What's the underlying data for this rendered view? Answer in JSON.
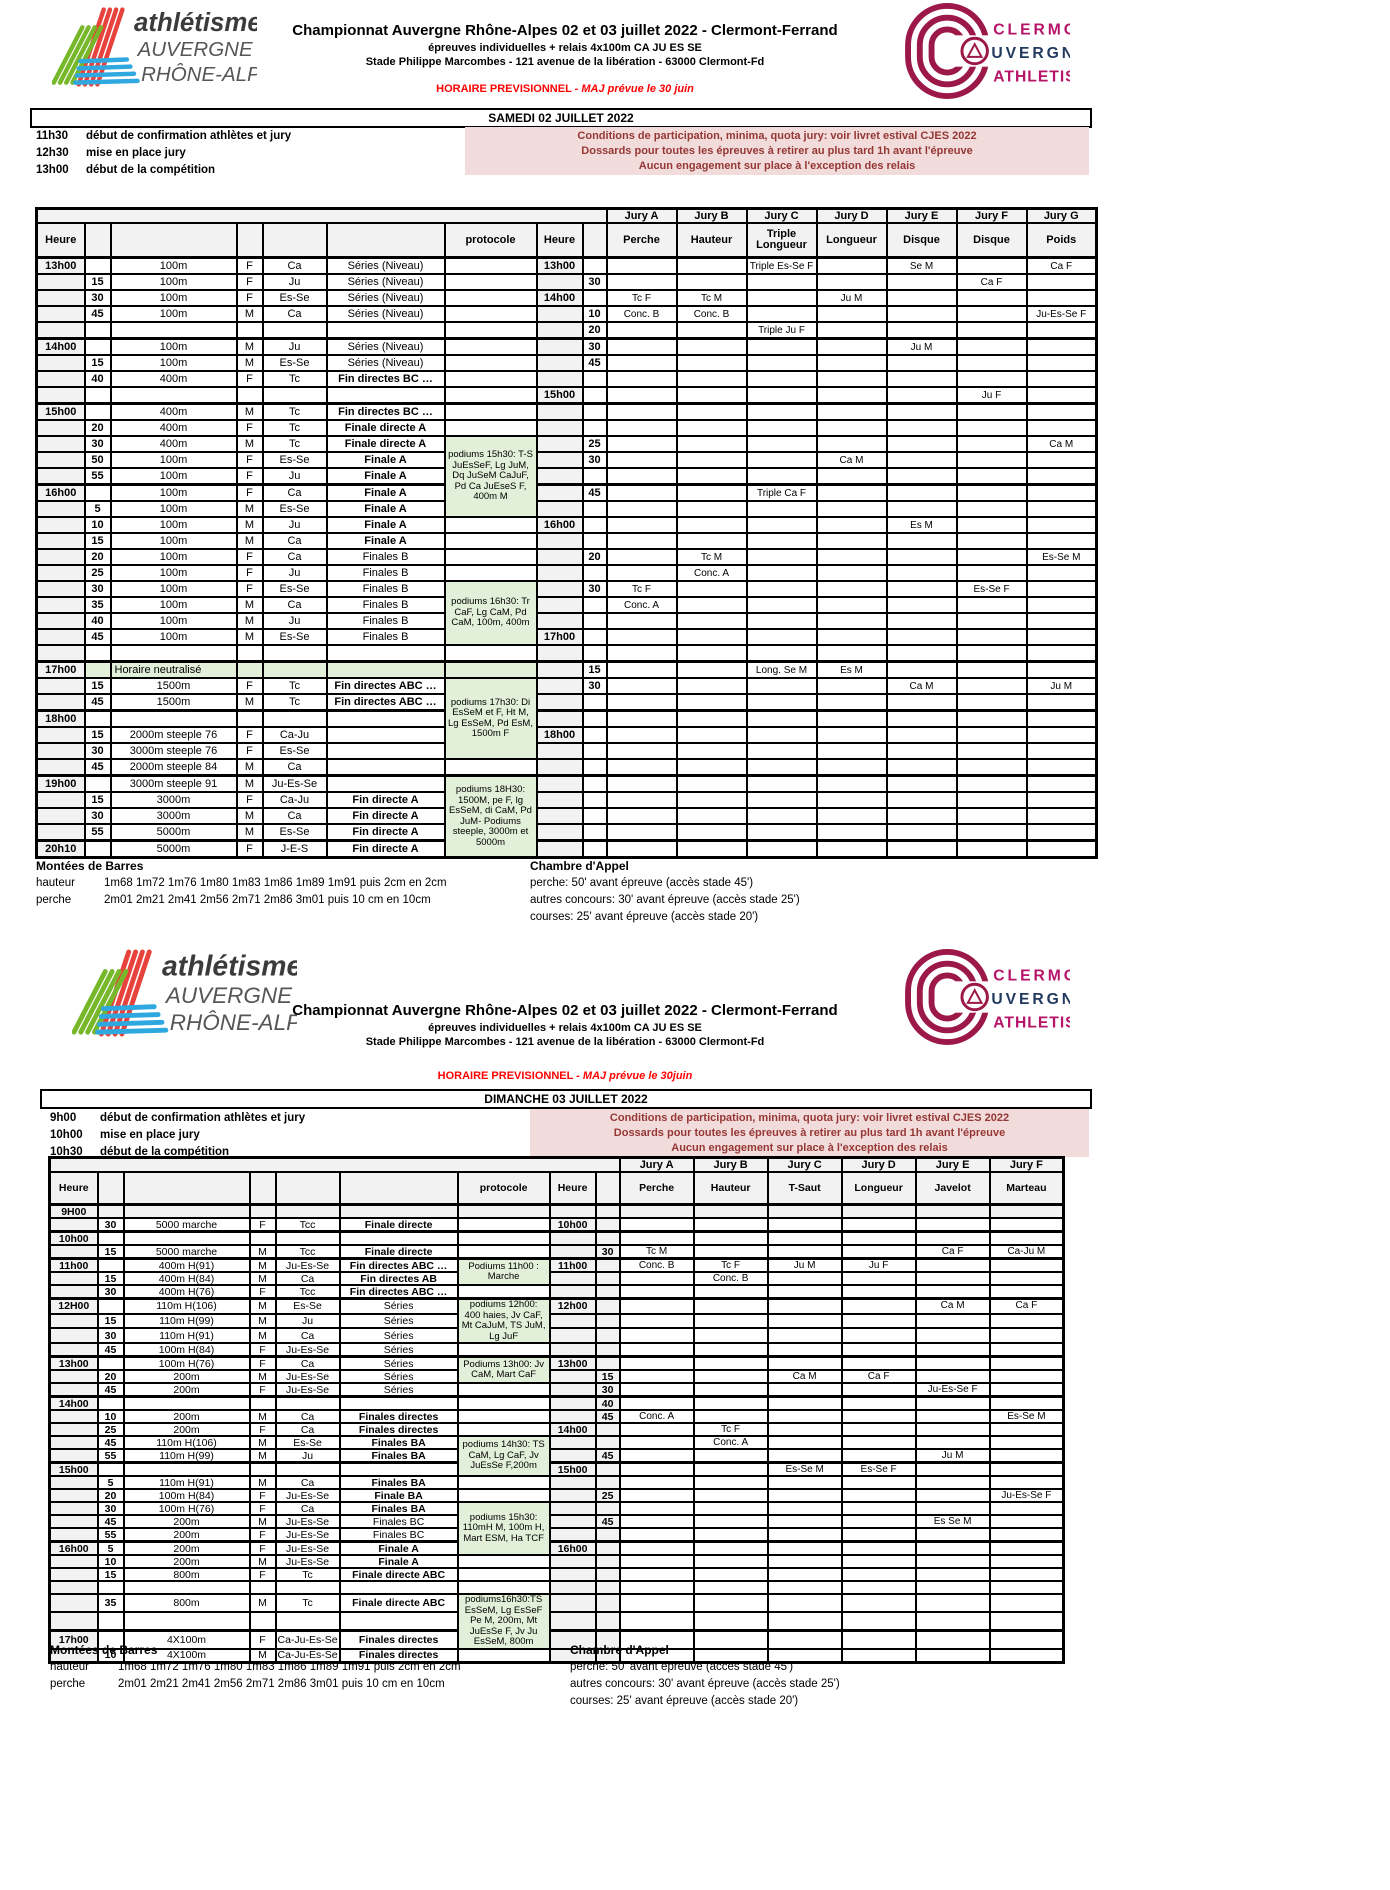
{
  "header": {
    "title": "Championnat Auvergne Rhône-Alpes 02 et 03 juillet 2022 - Clermont-Ferrand",
    "subtitle1": "épreuves individuelles + relais 4x100m CA JU ES SE",
    "subtitle2": "Stade Philippe Marcombes - 121 avenue de la libération - 63000 Clermont-Fd",
    "schedule_prefix": "HORAIRE PREVISIONNEL - ",
    "maj_note_sat": "MAJ prévue le 30 juin",
    "maj_note_sun": "MAJ prévue le 30juin"
  },
  "logo_left": {
    "line1": "athlétisme",
    "line2": "AUVERGNE",
    "line3": "RHÔNE-ALPES"
  },
  "logo_right": {
    "line1": "CLERMONT",
    "line2": "UVERGNE",
    "line3": "ATHLETISME"
  },
  "conditions": [
    "Conditions de participation, minima, quota jury: voir livret estival CJES 2022",
    "Dossards pour toutes les épreuves à retirer au plus tard 1h avant l'épreuve",
    "Aucun engagement sur place à l'exception des relais"
  ],
  "colors": {
    "green_box": "#e2efd9",
    "pink_box": "#f2dcdb",
    "red_note": "#ff0000",
    "maroon_text": "#953735"
  },
  "footer": {
    "bars_title": "Montées de Barres",
    "bars_rows": [
      [
        "hauteur",
        "1m68 1m72 1m76 1m80 1m83 1m86 1m89 1m91 puis 2cm en 2cm"
      ],
      [
        "perche",
        "2m01 2m21 2m41 2m56 2m71 2m86 3m01 puis 10 cm en 10cm"
      ]
    ],
    "call_title": "Chambre d'Appel",
    "call_lines": [
      "perche: 50' avant épreuve (accès stade 45')",
      "autres concours: 30' avant épreuve (accès stade 25')",
      "courses: 25' avant épreuve (accès stade 20')"
    ]
  },
  "saturday": {
    "day_title": "SAMEDI 02 JUILLET 2022",
    "notes": [
      [
        "11h30",
        "début de confirmation athlètes et jury"
      ],
      [
        "12h30",
        "mise en place jury"
      ],
      [
        "13h00",
        "début de la compétition"
      ]
    ],
    "headers": {
      "heure": "Heure",
      "protocole": "protocole",
      "heure2": "Heure"
    },
    "jury_labels": [
      "Jury A",
      "Jury B",
      "Jury C",
      "Jury D",
      "Jury E",
      "Jury F",
      "Jury G"
    ],
    "jury_disciplines": [
      "Perche",
      "Hauteur",
      "Triple Longueur",
      "Longueur",
      "Disque",
      "Disque",
      "Poids"
    ],
    "protocol_boxes": [
      {
        "start": 11,
        "span": 5,
        "text": "podiums 15h30:  T-S JuEsSeF, Lg JuM, Dq JuSeM CaJuF, Pd Ca JuEseS F, 400m M"
      },
      {
        "start": 20,
        "span": 4,
        "text": "podiums 16h30: Tr CaF, Lg CaM, Pd CaM, 100m, 400m"
      },
      {
        "start": 26,
        "span": 5,
        "text": "podiums 17h30: Di EsSeM et F, Ht M, Lg  EsSeM, Pd EsM, 1500m F"
      },
      {
        "start": 32,
        "span": 5,
        "text": "podiums 18H30: 1500M, pe F, lg EsSeM, di CaM, Pd JuM- Podiums steeple, 3000m et 5000m"
      }
    ],
    "rows": [
      {
        "th": 1,
        "h": "13h00",
        "ev": "100m",
        "sx": "F",
        "cat": "Ca",
        "rd": "Séries (Niveau)",
        "h2": "13h00",
        "j": {
          "C": "Triple Es-Se F",
          "E": "Se M",
          "G": "Ca F"
        }
      },
      {
        "m": "15",
        "ev": "100m",
        "sx": "F",
        "cat": "Ju",
        "rd": "Séries (Niveau)",
        "m2": "30",
        "j": {
          "F": "Ca F"
        }
      },
      {
        "m": "30",
        "ev": "100m",
        "sx": "F",
        "cat": "Es-Se",
        "rd": "Séries (Niveau)",
        "h2": "14h00",
        "j": {
          "A": "Tc F",
          "B": "Tc M",
          "D": "Ju M"
        }
      },
      {
        "m": "45",
        "ev": "100m",
        "sx": "M",
        "cat": "Ca",
        "rd": "Séries (Niveau)",
        "m2": "10",
        "j": {
          "A": "Conc. B",
          "B": "Conc. B",
          "G": "Ju-Es-Se F"
        }
      },
      {
        "m2": "20",
        "j": {
          "C": "Triple Ju F"
        }
      },
      {
        "th": 1,
        "h": "14h00",
        "ev": "100m",
        "sx": "M",
        "cat": "Ju",
        "rd": "Séries (Niveau)",
        "m2": "30",
        "j": {
          "E": "Ju M"
        }
      },
      {
        "m": "15",
        "ev": "100m",
        "sx": "M",
        "cat": "Es-Se",
        "rd": "Séries (Niveau)",
        "m2": "45"
      },
      {
        "m": "40",
        "ev": "400m",
        "sx": "F",
        "cat": "Tc",
        "rd": "Fin directes BC …",
        "b": 1
      },
      {
        "h2": "15h00",
        "j": {
          "F": "Ju F"
        }
      },
      {
        "th": 1,
        "h": "15h00",
        "ev": "400m",
        "sx": "M",
        "cat": "Tc",
        "rd": "Fin directes BC …",
        "b": 1
      },
      {
        "m": "20",
        "ev": "400m",
        "sx": "F",
        "cat": "Tc",
        "rd": "Finale directe A",
        "b": 1
      },
      {
        "m": "30",
        "ev": "400m",
        "sx": "M",
        "cat": "Tc",
        "rd": "Finale directe A",
        "b": 1,
        "m2": "25",
        "j": {
          "G": "Ca M"
        }
      },
      {
        "m": "50",
        "ev": "100m",
        "sx": "F",
        "cat": "Es-Se",
        "rd": "Finale A",
        "b": 1,
        "m2": "30",
        "j": {
          "D": "Ca M"
        }
      },
      {
        "m": "55",
        "ev": "100m",
        "sx": "F",
        "cat": "Ju",
        "rd": "Finale A",
        "b": 1
      },
      {
        "th": 1,
        "h": "16h00",
        "ev": "100m",
        "sx": "F",
        "cat": "Ca",
        "rd": "Finale A",
        "b": 1,
        "m2": "45",
        "j": {
          "C": "Triple Ca F"
        }
      },
      {
        "m": "5",
        "ev": "100m",
        "sx": "M",
        "cat": "Es-Se",
        "rd": "Finale A",
        "b": 1
      },
      {
        "m": "10",
        "ev": "100m",
        "sx": "M",
        "cat": "Ju",
        "rd": "Finale A",
        "b": 1,
        "h2": "16h00",
        "j": {
          "E": "Es M"
        }
      },
      {
        "m": "15",
        "ev": "100m",
        "sx": "M",
        "cat": "Ca",
        "rd": "Finale A",
        "b": 1
      },
      {
        "m": "20",
        "ev": "100m",
        "sx": "F",
        "cat": "Ca",
        "rd": "Finales B",
        "m2": "20",
        "j": {
          "B": "Tc M",
          "G": "Es-Se M"
        }
      },
      {
        "m": "25",
        "ev": "100m",
        "sx": "F",
        "cat": "Ju",
        "rd": "Finales B",
        "j": {
          "B": "Conc. A"
        }
      },
      {
        "m": "30",
        "ev": "100m",
        "sx": "F",
        "cat": "Es-Se",
        "rd": "Finales B",
        "m2": "30",
        "j": {
          "A": "Tc F",
          "F": "Es-Se F"
        }
      },
      {
        "m": "35",
        "ev": "100m",
        "sx": "M",
        "cat": "Ca",
        "rd": "Finales B",
        "j": {
          "A": "Conc. A"
        }
      },
      {
        "m": "40",
        "ev": "100m",
        "sx": "M",
        "cat": "Ju",
        "rd": "Finales B"
      },
      {
        "m": "45",
        "ev": "100m",
        "sx": "M",
        "cat": "Es-Se",
        "rd": "Finales B",
        "h2": "17h00"
      },
      {},
      {
        "th": 1,
        "h": "17h00",
        "neutral": 1,
        "ev": "Horaire neutralisé",
        "m2": "15",
        "j": {
          "C": "Long. Se M",
          "D": "Es M"
        }
      },
      {
        "m": "15",
        "ev": "1500m",
        "sx": "F",
        "cat": "Tc",
        "rd": "Fin directes ABC …",
        "b": 1,
        "m2": "30",
        "j": {
          "E": "Ca M",
          "G": "Ju M"
        }
      },
      {
        "m": "45",
        "ev": "1500m",
        "sx": "M",
        "cat": "Tc",
        "rd": "Fin directes ABC …",
        "b": 1
      },
      {
        "th": 1,
        "h": "18h00"
      },
      {
        "m": "15",
        "ev": "2000m steeple 76",
        "sx": "F",
        "cat": "Ca-Ju",
        "h2": "18h00"
      },
      {
        "m": "30",
        "ev": "3000m steeple 76",
        "sx": "F",
        "cat": "Es-Se"
      },
      {
        "m": "45",
        "ev": "2000m steeple 84",
        "sx": "M",
        "cat": "Ca"
      },
      {
        "th": 1,
        "h": "19h00",
        "ev": "3000m steeple 91",
        "sx": "M",
        "cat": "Ju-Es-Se"
      },
      {
        "m": "15",
        "ev": "3000m",
        "sx": "F",
        "cat": "Ca-Ju",
        "rd": "Fin directe A",
        "b": 1
      },
      {
        "m": "30",
        "ev": "3000m",
        "sx": "M",
        "cat": "Ca",
        "rd": "Fin directe A",
        "b": 1
      },
      {
        "m": "55",
        "ev": "5000m",
        "sx": "M",
        "cat": "Es-Se",
        "rd": "Fin directe A",
        "b": 1
      },
      {
        "th": 1,
        "h": "20h10",
        "ev": "5000m",
        "sx": "F",
        "cat": "J-E-S",
        "rd": "Fin directe A",
        "b": 1
      }
    ]
  },
  "sunday": {
    "day_title": "DIMANCHE 03 JUILLET 2022",
    "notes": [
      [
        "9h00",
        "début de confirmation athlètes et jury"
      ],
      [
        "10h00",
        "mise en place jury"
      ],
      [
        "10h30",
        "début de la compétition"
      ]
    ],
    "headers": {
      "heure": "Heure",
      "protocole": "protocole",
      "heure2": "Heure"
    },
    "jury_labels": [
      "Jury A",
      "Jury B",
      "Jury C",
      "Jury D",
      "Jury E",
      "Jury F"
    ],
    "jury_disciplines": [
      "Perche",
      "Hauteur",
      "T-Saut",
      "Longueur",
      "Javelot",
      "Marteau"
    ],
    "protocol_boxes": [
      {
        "start": 4,
        "span": 2,
        "text": "Podiums 11h00 : Marche"
      },
      {
        "start": 7,
        "span": 3,
        "text": "podiums 12h00:  400 haies, Jv CaF, Mt CaJuM, TS JuM, Lg JuF"
      },
      {
        "start": 11,
        "span": 2,
        "text": "Podiums 13h00: Jv CaM, Mart CaF"
      },
      {
        "start": 17,
        "span": 3,
        "text": "podiums 14h30:  TS CaM, Lg CaF, Jv JuEsSe F,200m"
      },
      {
        "start": 22,
        "span": 4,
        "text": "podiums 15h30: 110mH M, 100m H, Mart ESM, Ha TCF"
      },
      {
        "start": 29,
        "span": 3,
        "text": "podiums16h30:TS EsSeM, Lg EsSeF Pe M, 200m, Mt JuEsSe F, Jv Ju EsSeM, 800m"
      }
    ],
    "rows": [
      {
        "th": 1,
        "h": "9H00",
        "gray": 1
      },
      {
        "m": "30",
        "ev": "5000 marche",
        "sx": "F",
        "cat": "Tcc",
        "rd": "Finale directe",
        "b": 1,
        "h2": "10h00"
      },
      {
        "th": 1,
        "h": "10h00"
      },
      {
        "m": "15",
        "ev": "5000 marche",
        "sx": "M",
        "cat": "Tcc",
        "rd": "Finale directe",
        "b": 1,
        "m2": "30",
        "j": {
          "A": "Tc M",
          "E": "Ca F",
          "F": "Ca-Ju M"
        }
      },
      {
        "th": 1,
        "h": "11h00",
        "ev": "400m H(91)",
        "sx": "M",
        "cat": "Ju-Es-Se",
        "rd": "Fin directes ABC …",
        "b": 1,
        "h2": "11h00",
        "j": {
          "A": "Conc. B",
          "B": "Tc F",
          "C": "Ju M",
          "D": "Ju F"
        }
      },
      {
        "m": "15",
        "ev": "400m H(84)",
        "sx": "M",
        "cat": "Ca",
        "rd": "Fin directes AB",
        "b": 1,
        "j": {
          "B": "Conc. B"
        }
      },
      {
        "m": "30",
        "ev": "400m H(76)",
        "sx": "F",
        "cat": "Tcc",
        "rd": "Fin directes ABC …",
        "b": 1
      },
      {
        "th": 1,
        "h": "12H00",
        "ev": "110m H(106)",
        "sx": "M",
        "cat": "Es-Se",
        "rd": "Séries",
        "h2": "12h00",
        "j": {
          "E": "Ca M",
          "F": "Ca F"
        }
      },
      {
        "m": "15",
        "ev": "110m H(99)",
        "sx": "M",
        "cat": "Ju",
        "rd": "Séries"
      },
      {
        "m": "30",
        "ev": "110m H(91)",
        "sx": "M",
        "cat": "Ca",
        "rd": "Séries"
      },
      {
        "m": "45",
        "ev": "100m H(84)",
        "sx": "F",
        "cat": "Ju-Es-Se",
        "rd": "Séries"
      },
      {
        "th": 1,
        "h": "13h00",
        "ev": "100m H(76)",
        "sx": "F",
        "cat": "Ca",
        "rd": "Séries",
        "h2": "13h00"
      },
      {
        "m": "20",
        "ev": "200m",
        "sx": "M",
        "cat": "Ju-Es-Se",
        "rd": "Séries",
        "m2": "15",
        "j": {
          "C": "Ca M",
          "D": "Ca F"
        }
      },
      {
        "m": "45",
        "ev": "200m",
        "sx": "F",
        "cat": "Ju-Es-Se",
        "rd": "Séries",
        "m2": "30",
        "j": {
          "E": "Ju-Es-Se F"
        }
      },
      {
        "th": 1,
        "h": "14h00",
        "m2": "40"
      },
      {
        "m": "10",
        "ev": "200m",
        "sx": "M",
        "cat": "Ca",
        "rd": "Finales directes",
        "b": 1,
        "m2": "45",
        "j": {
          "A": "Conc. A",
          "F": "Es-Se M"
        }
      },
      {
        "m": "25",
        "ev": "200m",
        "sx": "F",
        "cat": "Ca",
        "rd": "Finales directes",
        "b": 1,
        "h2": "14h00",
        "j": {
          "B": "Tc F"
        }
      },
      {
        "m": "45",
        "ev": "110m H(106)",
        "sx": "M",
        "cat": "Es-Se",
        "rd": "Finales BA",
        "b": 1,
        "j": {
          "B": "Conc. A"
        }
      },
      {
        "m": "55",
        "ev": "110m H(99)",
        "sx": "M",
        "cat": "Ju",
        "rd": "Finales BA",
        "b": 1,
        "m2": "45",
        "j": {
          "E": "Ju M"
        }
      },
      {
        "th": 1,
        "h": "15h00",
        "h2": "15h00",
        "j": {
          "C": "Es-Se M",
          "D": "Es-Se F"
        }
      },
      {
        "m": "5",
        "ev": "110m H(91)",
        "sx": "M",
        "cat": "Ca",
        "rd": "Finales BA",
        "b": 1
      },
      {
        "m": "20",
        "ev": "100m H(84)",
        "sx": "F",
        "cat": "Ju-Es-Se",
        "rd": "Finale BA",
        "b": 1,
        "m2": "25",
        "j": {
          "F": "Ju-Es-Se F"
        }
      },
      {
        "m": "30",
        "ev": "100m H(76)",
        "sx": "F",
        "cat": "Ca",
        "rd": "Finales BA",
        "b": 1
      },
      {
        "m": "45",
        "ev": "200m",
        "sx": "M",
        "cat": "Ju-Es-Se",
        "rd": "Finales BC",
        "m2": "45",
        "j": {
          "E": "Es Se M"
        }
      },
      {
        "m": "55",
        "ev": "200m",
        "sx": "F",
        "cat": "Ju-Es-Se",
        "rd": "Finales BC"
      },
      {
        "th": 1,
        "h": "16h00",
        "m": "5",
        "ev": "200m",
        "sx": "F",
        "cat": "Ju-Es-Se",
        "rd": "Finale A",
        "b": 1,
        "h2": "16h00"
      },
      {
        "m": "10",
        "ev": "200m",
        "sx": "M",
        "cat": "Ju-Es-Se",
        "rd": "Finale A",
        "b": 1
      },
      {
        "m": "15",
        "ev": "800m",
        "sx": "F",
        "cat": "Tc",
        "rd": "Finale directe ABC",
        "b": 1
      },
      {},
      {
        "m": "35",
        "ev": "800m",
        "sx": "M",
        "cat": "Tc",
        "rd": "Finale directe ABC",
        "b": 1
      },
      {},
      {
        "th": 1,
        "h": "17h00",
        "ev": "4X100m",
        "sx": "F",
        "cat": "Ca-Ju-Es-Se",
        "rd": "Finales directes",
        "b": 1
      },
      {
        "m": "10",
        "ev": "4X100m",
        "sx": "M",
        "cat": "Ca-Ju-Es-Se",
        "rd": "Finales directes",
        "b": 1
      }
    ]
  }
}
